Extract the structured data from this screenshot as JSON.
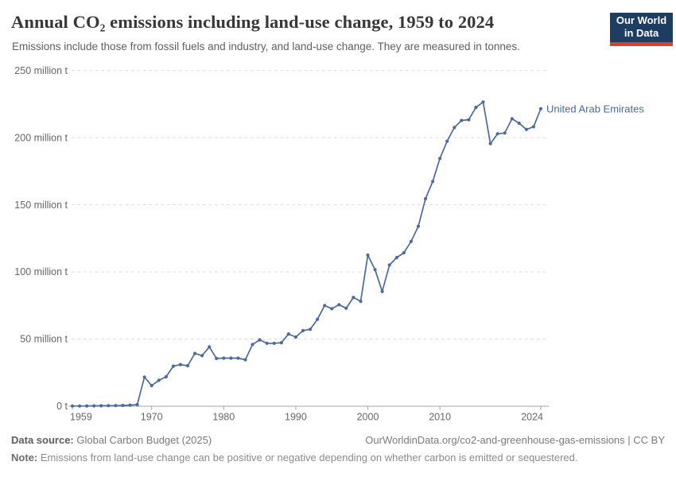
{
  "header": {
    "title": "Annual CO₂ emissions including land-use change, 1959 to 2024",
    "subtitle": "Emissions include those from fossil fuels and industry, and land-use change. They are measured in tonnes.",
    "logo": {
      "line1": "Our World",
      "line2": "in Data"
    }
  },
  "chart_data": {
    "type": "line",
    "title": "Annual CO₂ emissions including land-use change, 1959 to 2024",
    "entity": "United Arab Emirates",
    "unit": "million tonnes",
    "xlim": [
      1959,
      2024
    ],
    "ylim": [
      0,
      250
    ],
    "grid": "horizontal-dashed",
    "legend_position": "end-of-line-label",
    "x_ticks": [
      1959,
      1970,
      1980,
      1990,
      2000,
      2010,
      2024
    ],
    "y_ticks": [
      {
        "value": 0,
        "label": "0 t"
      },
      {
        "value": 50,
        "label": "50 million t"
      },
      {
        "value": 100,
        "label": "100 million t"
      },
      {
        "value": 150,
        "label": "150 million t"
      },
      {
        "value": 200,
        "label": "200 million t"
      },
      {
        "value": 250,
        "label": "250 million t"
      }
    ],
    "years": [
      1959,
      1960,
      1961,
      1962,
      1963,
      1964,
      1965,
      1966,
      1967,
      1968,
      1969,
      1970,
      1971,
      1972,
      1973,
      1974,
      1975,
      1976,
      1977,
      1978,
      1979,
      1980,
      1981,
      1982,
      1983,
      1984,
      1985,
      1986,
      1987,
      1988,
      1989,
      1990,
      1991,
      1992,
      1993,
      1994,
      1995,
      1996,
      1997,
      1998,
      1999,
      2000,
      2001,
      2002,
      2003,
      2004,
      2005,
      2006,
      2007,
      2008,
      2009,
      2010,
      2011,
      2012,
      2013,
      2014,
      2015,
      2016,
      2017,
      2018,
      2019,
      2020,
      2021,
      2022,
      2023,
      2024
    ],
    "series": [
      {
        "name": "United Arab Emirates",
        "color": "#4C6A9C",
        "values": [
          0.15,
          0.2,
          0.25,
          0.3,
          0.35,
          0.4,
          0.5,
          0.6,
          0.8,
          1.2,
          21.7,
          15.4,
          19.3,
          21.9,
          29.8,
          31.0,
          30.2,
          39.3,
          37.7,
          44.2,
          35.6,
          35.8,
          35.8,
          35.8,
          34.6,
          46.0,
          49.4,
          46.9,
          46.9,
          47.3,
          53.8,
          51.5,
          56.3,
          57.3,
          64.7,
          75.0,
          72.6,
          75.6,
          73.0,
          81.0,
          78.1,
          112.5,
          101.6,
          85.4,
          105.2,
          110.7,
          114.2,
          122.7,
          134.0,
          154.5,
          167.3,
          184.5,
          197.3,
          207.5,
          212.8,
          213.3,
          222.5,
          226.5,
          195.5,
          202.8,
          203.4,
          214.0,
          210.7,
          206.1,
          208.1,
          221.5
        ]
      }
    ]
  },
  "footer": {
    "data_source_label": "Data source:",
    "data_source_value": " Global Carbon Budget (2025)",
    "link": "OurWorldinData.org/co2-and-greenhouse-gas-emissions | CC BY",
    "note_label": "Note:",
    "note_text": " Emissions from land-use change can be positive or negative depending on whether carbon is emitted or sequestered."
  },
  "colors": {
    "line": "#4C6A9C",
    "grid": "#dcdcdc",
    "axis": "#a6a6a6",
    "tick_text": "#666666",
    "logo_bg": "#1d3d63",
    "logo_accent": "#d8402f"
  }
}
